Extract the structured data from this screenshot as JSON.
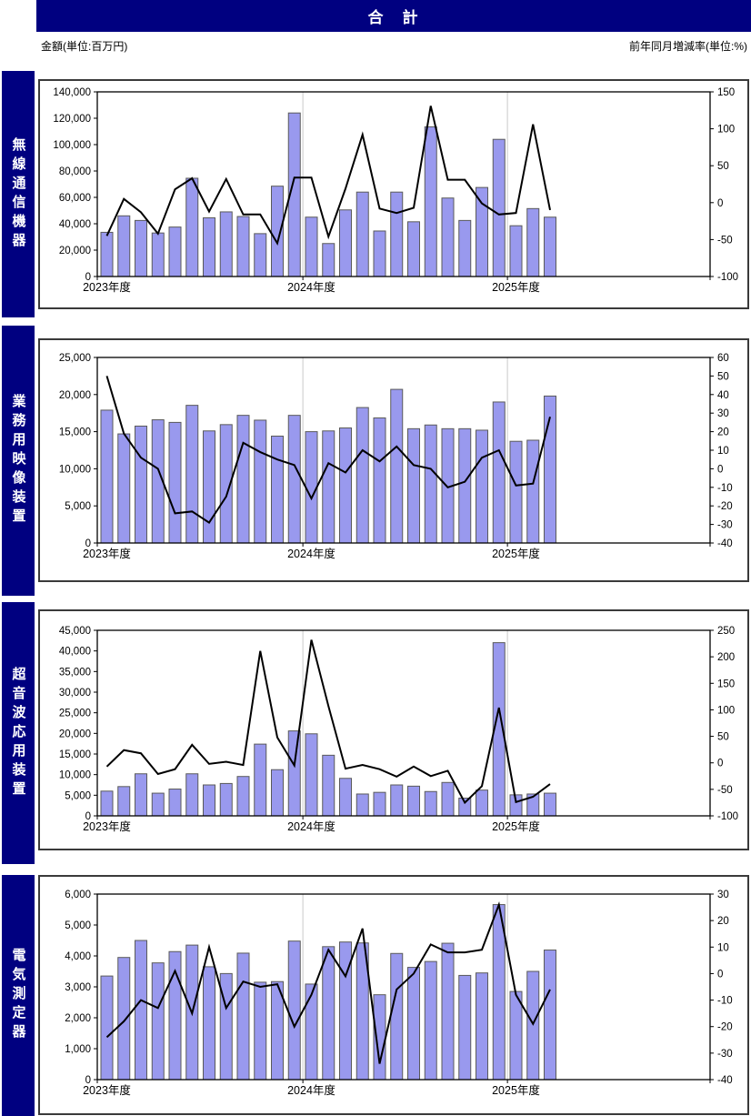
{
  "page": {
    "title": "合　計",
    "unit_left": "金額(単位:百万円)",
    "unit_right": "前年同月増減率(単位:%)"
  },
  "colors": {
    "header_bg": "#000080",
    "sidebar_bg": "#000080",
    "bar_fill": "#9999EE",
    "bar_stroke": "#5a5a5a",
    "line_color": "#000000",
    "gridline_color": "#c9c9c9",
    "axis_color": "#000000"
  },
  "x_labels": [
    "2023年度",
    "2024年度",
    "2025年度"
  ],
  "chart_data": [
    {
      "type": "bar+line",
      "title": "無線通信機器",
      "categories_years": [
        "2023年度",
        "2024年度",
        "2025年度"
      ],
      "months_with_data": 27,
      "total_month_slots": 36,
      "left_axis": {
        "applies_to": "bars",
        "unit": "百万円",
        "min": 0,
        "max": 140000,
        "step": 20000
      },
      "right_axis": {
        "applies_to": "line",
        "unit": "%",
        "min": -100,
        "max": 150,
        "step": 50
      },
      "series": [
        {
          "name": "金額",
          "type": "bar",
          "values": [
            33500,
            46000,
            42500,
            33000,
            37500,
            74500,
            44500,
            49000,
            45500,
            32500,
            68500,
            124000,
            45000,
            25000,
            50500,
            64000,
            34500,
            64000,
            41500,
            113500,
            59500,
            42500,
            67500,
            104000,
            38500,
            51500,
            45000
          ]
        },
        {
          "name": "前年同月増減率",
          "type": "line",
          "values": [
            -45,
            5,
            -13,
            -42,
            18,
            33,
            -12,
            32,
            -16,
            -16,
            -55,
            34,
            34,
            -46,
            19,
            92,
            -8,
            -14,
            -7,
            131,
            31,
            31,
            -1,
            -16,
            -14,
            106,
            -10
          ]
        }
      ]
    },
    {
      "type": "bar+line",
      "title": "業務用映像装置",
      "categories_years": [
        "2023年度",
        "2024年度",
        "2025年度"
      ],
      "months_with_data": 27,
      "total_month_slots": 36,
      "left_axis": {
        "applies_to": "bars",
        "unit": "百万円",
        "min": 0,
        "max": 25000,
        "step": 5000
      },
      "right_axis": {
        "applies_to": "line",
        "unit": "%",
        "min": -40,
        "max": 60,
        "step": 10
      },
      "series": [
        {
          "name": "金額",
          "type": "bar",
          "values": [
            17900,
            14700,
            15750,
            16600,
            16250,
            18550,
            15100,
            15950,
            17200,
            16550,
            14400,
            17200,
            15000,
            15100,
            15500,
            18250,
            16850,
            20700,
            15400,
            15900,
            15400,
            15400,
            15200,
            19000,
            13700,
            13850,
            19800
          ]
        },
        {
          "name": "前年同月増減率",
          "type": "line",
          "values": [
            50,
            19,
            6,
            0,
            -24,
            -23,
            -29,
            -15,
            14,
            9,
            5,
            2,
            -16,
            3,
            -2,
            10,
            4,
            12,
            2,
            0,
            -10,
            -7,
            6,
            10,
            -9,
            -8,
            28
          ]
        }
      ]
    },
    {
      "type": "bar+line",
      "title": "超音波応用装置",
      "categories_years": [
        "2023年度",
        "2024年度",
        "2025年度"
      ],
      "months_with_data": 27,
      "total_month_slots": 36,
      "left_axis": {
        "applies_to": "bars",
        "unit": "百万円",
        "min": 0,
        "max": 45000,
        "step": 5000
      },
      "right_axis": {
        "applies_to": "line",
        "unit": "%",
        "min": -100,
        "max": 250,
        "step": 50
      },
      "series": [
        {
          "name": "金額",
          "type": "bar",
          "values": [
            6000,
            7100,
            10200,
            5500,
            6500,
            10200,
            7500,
            7850,
            9550,
            17400,
            11200,
            20600,
            19900,
            14700,
            9100,
            5300,
            5700,
            7500,
            7200,
            5900,
            8100,
            4300,
            6250,
            42000,
            5100,
            5300,
            5500
          ]
        },
        {
          "name": "前年同月増減率",
          "type": "line",
          "values": [
            -7,
            24,
            18,
            -21,
            -12,
            34,
            -2,
            2,
            -4,
            211,
            48,
            -5,
            232,
            107,
            -11,
            -4,
            -12,
            -26,
            -7,
            -25,
            -15,
            -75,
            -44,
            104,
            -74,
            -64,
            -40
          ]
        }
      ]
    },
    {
      "type": "bar+line",
      "title": "電気測定器",
      "categories_years": [
        "2023年度",
        "2024年度",
        "2025年度"
      ],
      "months_with_data": 27,
      "total_month_slots": 36,
      "left_axis": {
        "applies_to": "bars",
        "unit": "百万円",
        "min": 0,
        "max": 6000,
        "step": 1000
      },
      "right_axis": {
        "applies_to": "line",
        "unit": "%",
        "min": -40,
        "max": 30,
        "step": 10
      },
      "series": [
        {
          "name": "金額",
          "type": "bar",
          "values": [
            3350,
            3950,
            4500,
            3775,
            4140,
            4350,
            3650,
            3430,
            4090,
            3150,
            3170,
            4480,
            3090,
            4300,
            4450,
            4420,
            2745,
            4080,
            3630,
            3820,
            4410,
            3370,
            3450,
            5660,
            2850,
            3500,
            4190
          ]
        },
        {
          "name": "前年同月増減率",
          "type": "line",
          "values": [
            -24,
            -18,
            -10,
            -13,
            1,
            -15,
            10,
            -13,
            -3,
            -5,
            -4,
            -20,
            -8,
            9,
            -1,
            17,
            -34,
            -6,
            0,
            11,
            8,
            8,
            9,
            26,
            -8,
            -19,
            -6
          ]
        }
      ]
    }
  ]
}
